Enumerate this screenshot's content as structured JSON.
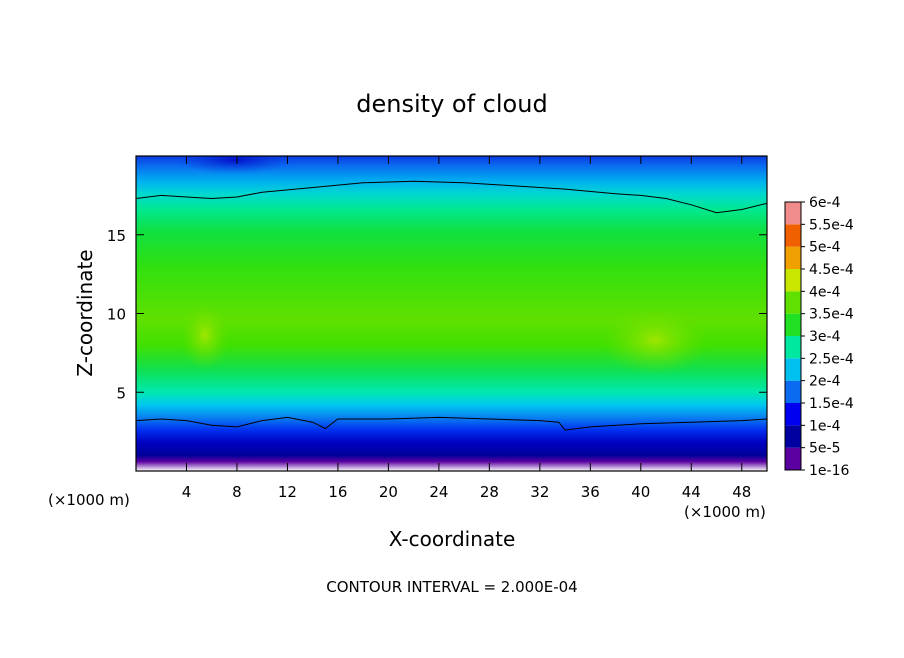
{
  "chart_data": {
    "type": "heatmap",
    "title": "density of cloud",
    "xlabel": "X-coordinate",
    "ylabel": "Z-coordinate",
    "x_unit_left": "(×1000 m)",
    "x_unit_right": "(×1000 m)",
    "xlim": [
      0,
      50
    ],
    "ylim": [
      0,
      20
    ],
    "x_ticks": [
      4,
      8,
      12,
      16,
      20,
      24,
      28,
      32,
      36,
      40,
      44,
      48
    ],
    "y_ticks": [
      5,
      10,
      15
    ],
    "footer": "CONTOUR INTERVAL = 2.000E-04",
    "colorbar": {
      "labels": [
        "1e-16",
        "5e-5",
        "1e-4",
        "1.5e-4",
        "2e-4",
        "2.5e-4",
        "3e-4",
        "3.5e-4",
        "4e-4",
        "4.5e-4",
        "5e-4",
        "5.5e-4",
        "6e-4"
      ],
      "colors": [
        "#5a00a0",
        "#0000a0",
        "#0000f0",
        "#0a6af0",
        "#00c0f0",
        "#00e8a0",
        "#22e022",
        "#60e000",
        "#c8e600",
        "#f0a000",
        "#f06000",
        "#f02000",
        "#f08c8c"
      ]
    },
    "contours": [
      {
        "level": 0.0002,
        "points": [
          [
            0,
            17.3
          ],
          [
            2,
            17.5
          ],
          [
            4,
            17.4
          ],
          [
            6,
            17.3
          ],
          [
            8,
            17.4
          ],
          [
            10,
            17.7
          ],
          [
            14,
            18.0
          ],
          [
            18,
            18.3
          ],
          [
            22,
            18.4
          ],
          [
            26,
            18.3
          ],
          [
            30,
            18.1
          ],
          [
            34,
            17.9
          ],
          [
            38,
            17.6
          ],
          [
            40,
            17.5
          ],
          [
            42,
            17.3
          ],
          [
            44,
            16.9
          ],
          [
            46,
            16.4
          ],
          [
            48,
            16.6
          ],
          [
            50,
            17.0
          ]
        ]
      },
      {
        "level": 0.0002,
        "points": [
          [
            0,
            3.2
          ],
          [
            2,
            3.3
          ],
          [
            4,
            3.2
          ],
          [
            6,
            2.9
          ],
          [
            8,
            2.8
          ],
          [
            10,
            3.2
          ],
          [
            12,
            3.4
          ],
          [
            14,
            3.1
          ],
          [
            15,
            2.7
          ],
          [
            16,
            3.3
          ],
          [
            20,
            3.3
          ],
          [
            24,
            3.4
          ],
          [
            28,
            3.3
          ],
          [
            32,
            3.2
          ],
          [
            33.5,
            3.1
          ],
          [
            34,
            2.6
          ],
          [
            36,
            2.8
          ],
          [
            40,
            3.0
          ],
          [
            44,
            3.1
          ],
          [
            48,
            3.2
          ],
          [
            50,
            3.3
          ]
        ]
      }
    ]
  }
}
